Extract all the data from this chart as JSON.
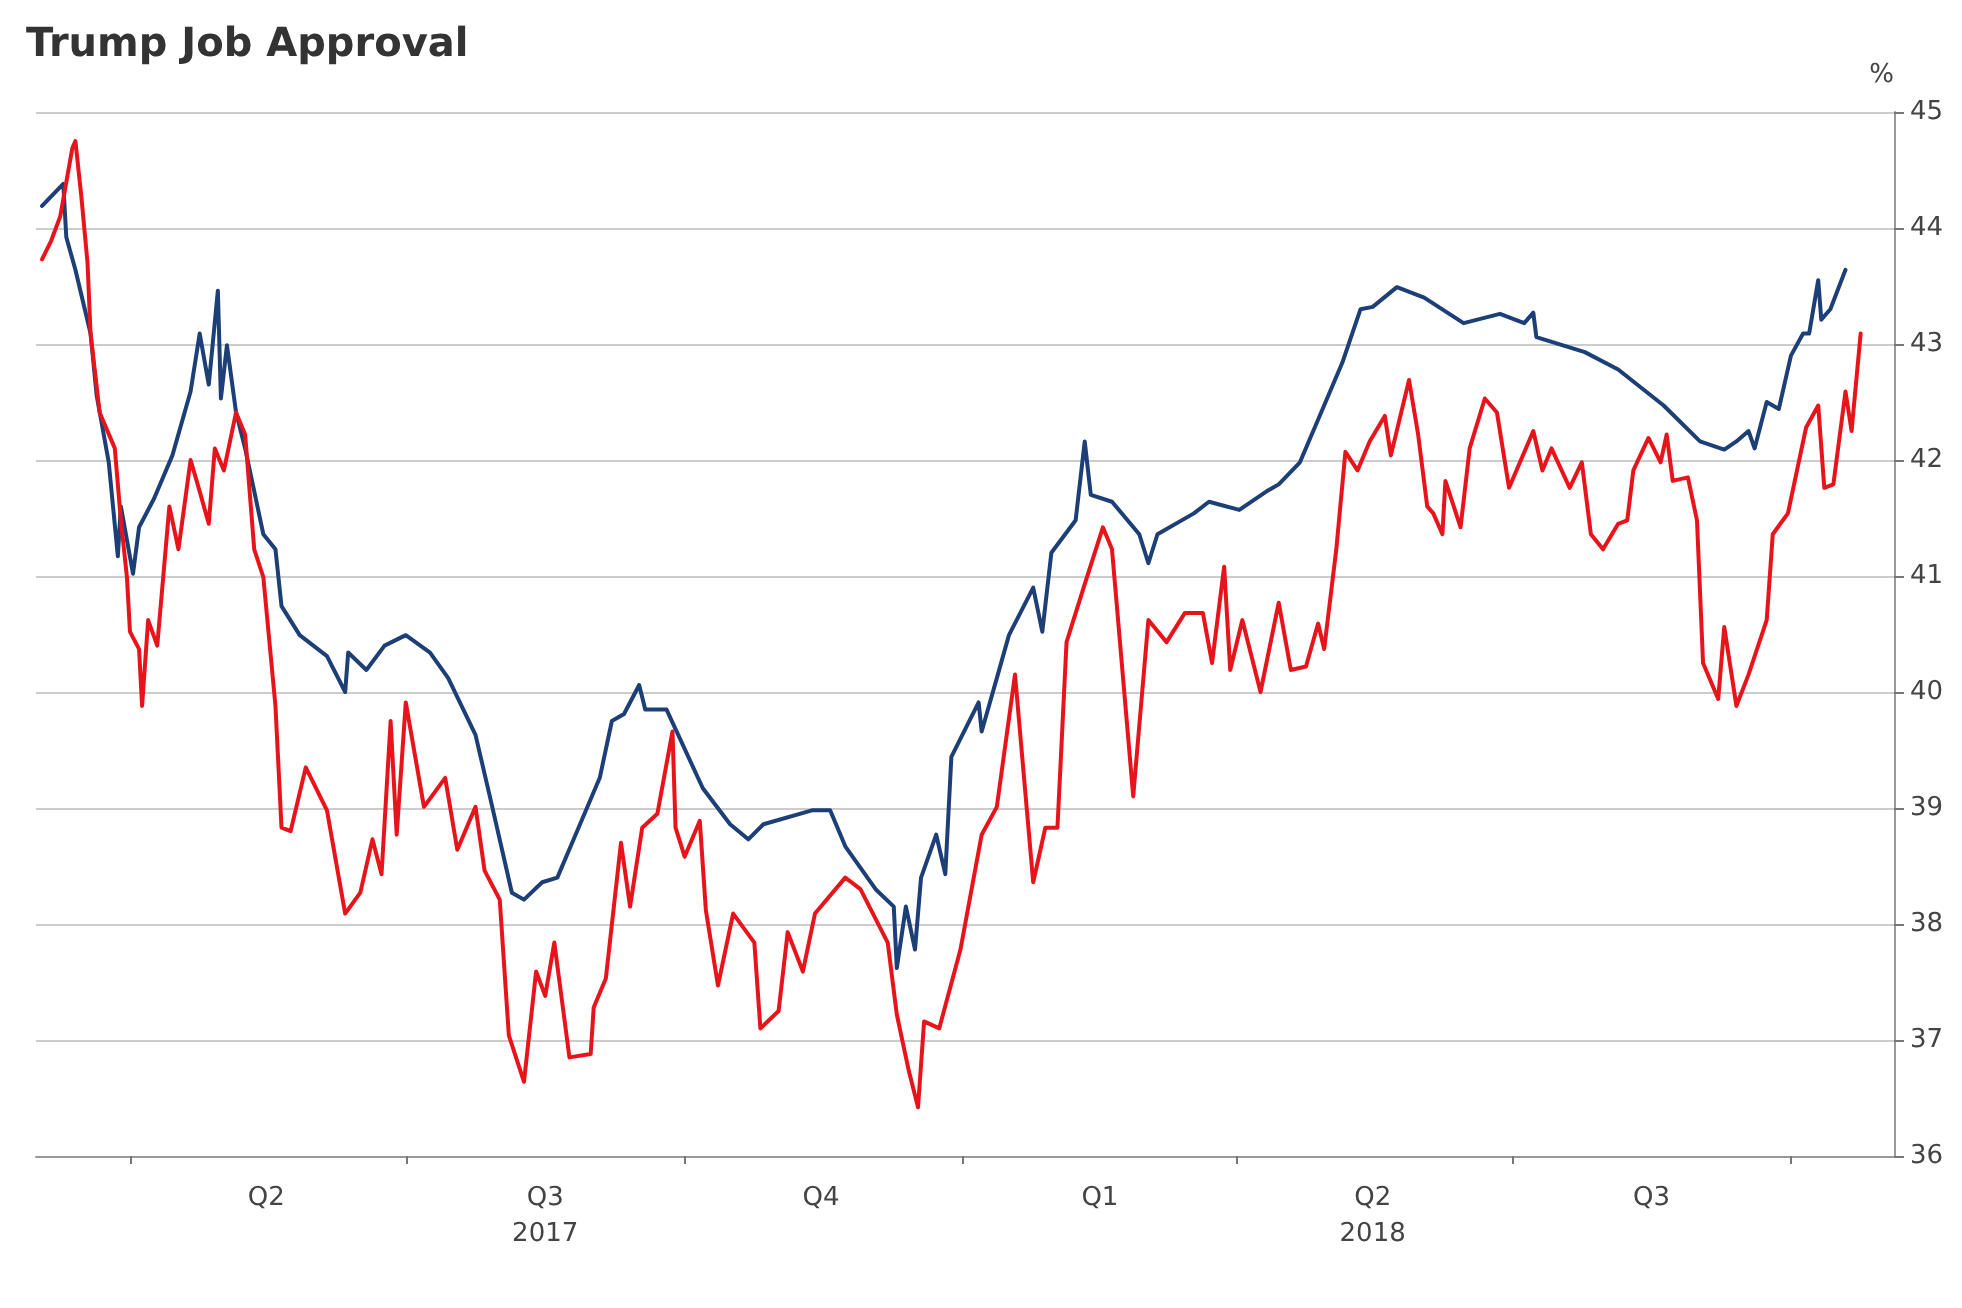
{
  "chart_data": {
    "type": "line",
    "title": "Trump Job Approval",
    "ylabel": "%",
    "xlim": [
      "2017-03-01",
      "2018-11-04"
    ],
    "ylim": [
      36,
      45
    ],
    "yticks": [
      36,
      37,
      38,
      39,
      40,
      41,
      42,
      43,
      44,
      45
    ],
    "xticks": [
      {
        "value": "2017-04-01",
        "label": null
      },
      {
        "value": "2017-05-16",
        "label": "Q2"
      },
      {
        "value": "2017-07-01",
        "label": null
      },
      {
        "value": "2017-08-16",
        "label": "Q3\n2017"
      },
      {
        "value": "2017-10-01",
        "label": null
      },
      {
        "value": "2017-11-15",
        "label": "Q4"
      },
      {
        "value": "2018-01-01",
        "label": null
      },
      {
        "value": "2018-02-15",
        "label": "Q1"
      },
      {
        "value": "2018-04-01",
        "label": null
      },
      {
        "value": "2018-05-16",
        "label": "Q2\n2018"
      },
      {
        "value": "2018-07-01",
        "label": null
      },
      {
        "value": "2018-08-16",
        "label": "Q3"
      },
      {
        "value": "2018-10-01",
        "label": null
      }
    ],
    "grid": "y",
    "marker": "none",
    "line_style": "solid",
    "series": [
      {
        "color": "#1d3f78",
        "x": [
          "2017-03-03",
          "2017-03-10",
          "2017-03-11",
          "2017-03-14",
          "2017-03-19",
          "2017-03-21",
          "2017-03-25",
          "2017-03-28",
          "2017-03-29",
          "2017-04-02",
          "2017-04-04",
          "2017-04-09",
          "2017-04-15",
          "2017-04-21",
          "2017-04-24",
          "2017-04-27",
          "2017-04-30",
          "2017-05-01",
          "2017-05-03",
          "2017-05-06",
          "2017-05-09",
          "2017-05-15",
          "2017-05-19",
          "2017-05-21",
          "2017-05-27",
          "2017-06-05",
          "2017-06-11",
          "2017-06-12",
          "2017-06-18",
          "2017-06-24",
          "2017-07-01",
          "2017-07-09",
          "2017-07-15",
          "2017-07-24",
          "2017-07-29",
          "2017-08-05",
          "2017-08-09",
          "2017-08-15",
          "2017-08-20",
          "2017-08-27",
          "2017-09-03",
          "2017-09-07",
          "2017-09-11",
          "2017-09-16",
          "2017-09-18",
          "2017-09-25",
          "2017-10-07",
          "2017-10-16",
          "2017-10-22",
          "2017-10-27",
          "2017-11-12",
          "2017-11-18",
          "2017-11-23",
          "2017-12-03",
          "2017-12-09",
          "2017-12-10",
          "2017-12-13",
          "2017-12-16",
          "2017-12-18",
          "2017-12-23",
          "2017-12-26",
          "2017-12-28",
          "2018-01-06",
          "2018-01-07",
          "2018-01-12",
          "2018-01-16",
          "2018-01-24",
          "2018-01-27",
          "2018-01-30",
          "2018-02-07",
          "2018-02-10",
          "2018-02-12",
          "2018-02-19",
          "2018-02-28",
          "2018-03-03",
          "2018-03-06",
          "2018-03-18",
          "2018-03-23",
          "2018-04-02",
          "2018-04-11",
          "2018-04-15",
          "2018-04-22",
          "2018-04-29",
          "2018-05-06",
          "2018-05-12",
          "2018-05-16",
          "2018-05-24",
          "2018-06-02",
          "2018-06-15",
          "2018-06-27",
          "2018-07-05",
          "2018-07-08",
          "2018-07-09",
          "2018-07-25",
          "2018-08-05",
          "2018-08-20",
          "2018-09-01",
          "2018-09-09",
          "2018-09-13",
          "2018-09-17",
          "2018-09-19",
          "2018-09-23",
          "2018-09-27",
          "2018-10-01",
          "2018-10-05",
          "2018-10-07",
          "2018-10-10",
          "2018-10-11",
          "2018-10-14",
          "2018-10-19"
        ],
        "values": [
          44.19,
          44.38,
          43.92,
          43.64,
          43.09,
          42.56,
          41.98,
          41.17,
          41.6,
          41.02,
          41.42,
          41.67,
          42.04,
          42.59,
          43.09,
          42.65,
          43.46,
          42.53,
          42.99,
          42.41,
          42.1,
          41.36,
          41.23,
          40.74,
          40.49,
          40.31,
          40.0,
          40.34,
          40.19,
          40.4,
          40.49,
          40.34,
          40.12,
          39.63,
          39.07,
          38.27,
          38.21,
          38.36,
          38.4,
          38.83,
          39.26,
          39.75,
          39.81,
          40.06,
          39.85,
          39.85,
          39.17,
          38.86,
          38.73,
          38.86,
          38.98,
          38.98,
          38.67,
          38.3,
          38.15,
          37.62,
          38.15,
          37.78,
          38.4,
          38.77,
          38.43,
          39.44,
          39.91,
          39.66,
          40.12,
          40.49,
          40.9,
          40.52,
          41.2,
          41.48,
          42.16,
          41.7,
          41.64,
          41.36,
          41.11,
          41.36,
          41.54,
          41.64,
          41.57,
          41.73,
          41.79,
          41.98,
          42.41,
          42.84,
          43.3,
          43.32,
          43.49,
          43.4,
          43.18,
          43.26,
          43.18,
          43.27,
          43.06,
          42.93,
          42.78,
          42.47,
          42.16,
          42.09,
          42.16,
          42.25,
          42.1,
          42.5,
          42.44,
          42.9,
          43.09,
          43.09,
          43.55,
          43.21,
          43.3,
          43.64
        ]
      },
      {
        "color": "#e8141b",
        "x": [
          "2017-03-03",
          "2017-03-06",
          "2017-03-09",
          "2017-03-13",
          "2017-03-14",
          "2017-03-16",
          "2017-03-18",
          "2017-03-19",
          "2017-03-22",
          "2017-03-27",
          "2017-03-29",
          "2017-03-31",
          "2017-04-01",
          "2017-04-04",
          "2017-04-05",
          "2017-04-07",
          "2017-04-10",
          "2017-04-14",
          "2017-04-17",
          "2017-04-21",
          "2017-04-24",
          "2017-04-27",
          "2017-04-29",
          "2017-05-02",
          "2017-05-06",
          "2017-05-09",
          "2017-05-12",
          "2017-05-15",
          "2017-05-19",
          "2017-05-21",
          "2017-05-24",
          "2017-05-29",
          "2017-06-05",
          "2017-06-11",
          "2017-06-16",
          "2017-06-20",
          "2017-06-23",
          "2017-06-26",
          "2017-06-28",
          "2017-07-01",
          "2017-07-07",
          "2017-07-14",
          "2017-07-18",
          "2017-07-24",
          "2017-07-27",
          "2017-08-01",
          "2017-08-04",
          "2017-08-09",
          "2017-08-13",
          "2017-08-16",
          "2017-08-19",
          "2017-08-24",
          "2017-08-31",
          "2017-09-01",
          "2017-09-05",
          "2017-09-10",
          "2017-09-13",
          "2017-09-17",
          "2017-09-22",
          "2017-09-27",
          "2017-09-28",
          "2017-10-01",
          "2017-10-06",
          "2017-10-08",
          "2017-10-12",
          "2017-10-17",
          "2017-10-24",
          "2017-10-26",
          "2017-11-01",
          "2017-11-04",
          "2017-11-09",
          "2017-11-13",
          "2017-11-23",
          "2017-11-28",
          "2017-12-07",
          "2017-12-10",
          "2017-12-14",
          "2017-12-17",
          "2017-12-19",
          "2017-12-24",
          "2017-12-31",
          "2018-01-07",
          "2018-01-12",
          "2018-01-18",
          "2018-01-24",
          "2018-01-28",
          "2018-02-01",
          "2018-02-04",
          "2018-02-10",
          "2018-02-16",
          "2018-02-19",
          "2018-02-26",
          "2018-03-03",
          "2018-03-09",
          "2018-03-15",
          "2018-03-21",
          "2018-03-24",
          "2018-03-28",
          "2018-03-30",
          "2018-04-03",
          "2018-04-09",
          "2018-04-15",
          "2018-04-19",
          "2018-04-24",
          "2018-04-28",
          "2018-04-30",
          "2018-05-04",
          "2018-05-07",
          "2018-05-11",
          "2018-05-15",
          "2018-05-20",
          "2018-05-22",
          "2018-05-28",
          "2018-05-31",
          "2018-06-03",
          "2018-06-05",
          "2018-06-08",
          "2018-06-09",
          "2018-06-14",
          "2018-06-17",
          "2018-06-22",
          "2018-06-26",
          "2018-06-30",
          "2018-07-08",
          "2018-07-11",
          "2018-07-14",
          "2018-07-20",
          "2018-07-24",
          "2018-07-27",
          "2018-07-31",
          "2018-08-05",
          "2018-08-08",
          "2018-08-10",
          "2018-08-15",
          "2018-08-19",
          "2018-08-21",
          "2018-08-23",
          "2018-08-28",
          "2018-08-31",
          "2018-09-02",
          "2018-09-07",
          "2018-09-09",
          "2018-09-13",
          "2018-09-17",
          "2018-09-23",
          "2018-09-25",
          "2018-09-30",
          "2018-10-06",
          "2018-10-10",
          "2018-10-12",
          "2018-10-15",
          "2018-10-19",
          "2018-10-21",
          "2018-10-24"
        ],
        "values": [
          43.73,
          43.89,
          44.1,
          44.69,
          44.75,
          44.26,
          43.7,
          43.09,
          42.41,
          42.1,
          41.48,
          40.99,
          40.52,
          40.37,
          39.88,
          40.62,
          40.4,
          41.6,
          41.23,
          42.0,
          41.73,
          41.45,
          42.1,
          41.91,
          42.41,
          42.22,
          41.23,
          40.99,
          39.88,
          38.83,
          38.8,
          39.35,
          38.98,
          38.09,
          38.27,
          38.73,
          38.43,
          39.75,
          38.77,
          39.91,
          39.01,
          39.26,
          38.64,
          39.01,
          38.46,
          38.21,
          37.04,
          36.64,
          37.59,
          37.38,
          37.84,
          36.85,
          36.88,
          37.28,
          37.53,
          38.7,
          38.15,
          38.83,
          38.95,
          39.66,
          38.83,
          38.58,
          38.89,
          38.12,
          37.47,
          38.09,
          37.84,
          37.1,
          37.25,
          37.93,
          37.59,
          38.09,
          38.4,
          38.3,
          37.84,
          37.22,
          36.73,
          36.42,
          37.16,
          37.1,
          37.78,
          38.77,
          39.01,
          40.15,
          38.36,
          38.83,
          38.83,
          40.43,
          40.93,
          41.42,
          41.23,
          39.1,
          40.62,
          40.43,
          40.68,
          40.68,
          40.25,
          41.08,
          40.19,
          40.62,
          40.0,
          40.77,
          40.19,
          40.22,
          40.59,
          40.37,
          41.23,
          42.07,
          41.91,
          42.16,
          42.38,
          42.04,
          42.69,
          42.22,
          41.6,
          41.54,
          41.36,
          41.82,
          41.42,
          42.1,
          42.53,
          42.41,
          41.76,
          42.25,
          41.91,
          42.1,
          41.76,
          41.98,
          41.36,
          41.23,
          41.45,
          41.48,
          41.91,
          42.19,
          41.98,
          42.22,
          41.82,
          41.85,
          41.48,
          40.25,
          39.94,
          40.56,
          39.88,
          40.15,
          40.62,
          41.36,
          41.54,
          42.28,
          42.47,
          41.76,
          41.79,
          42.59,
          42.25,
          43.09
        ]
      }
    ]
  }
}
